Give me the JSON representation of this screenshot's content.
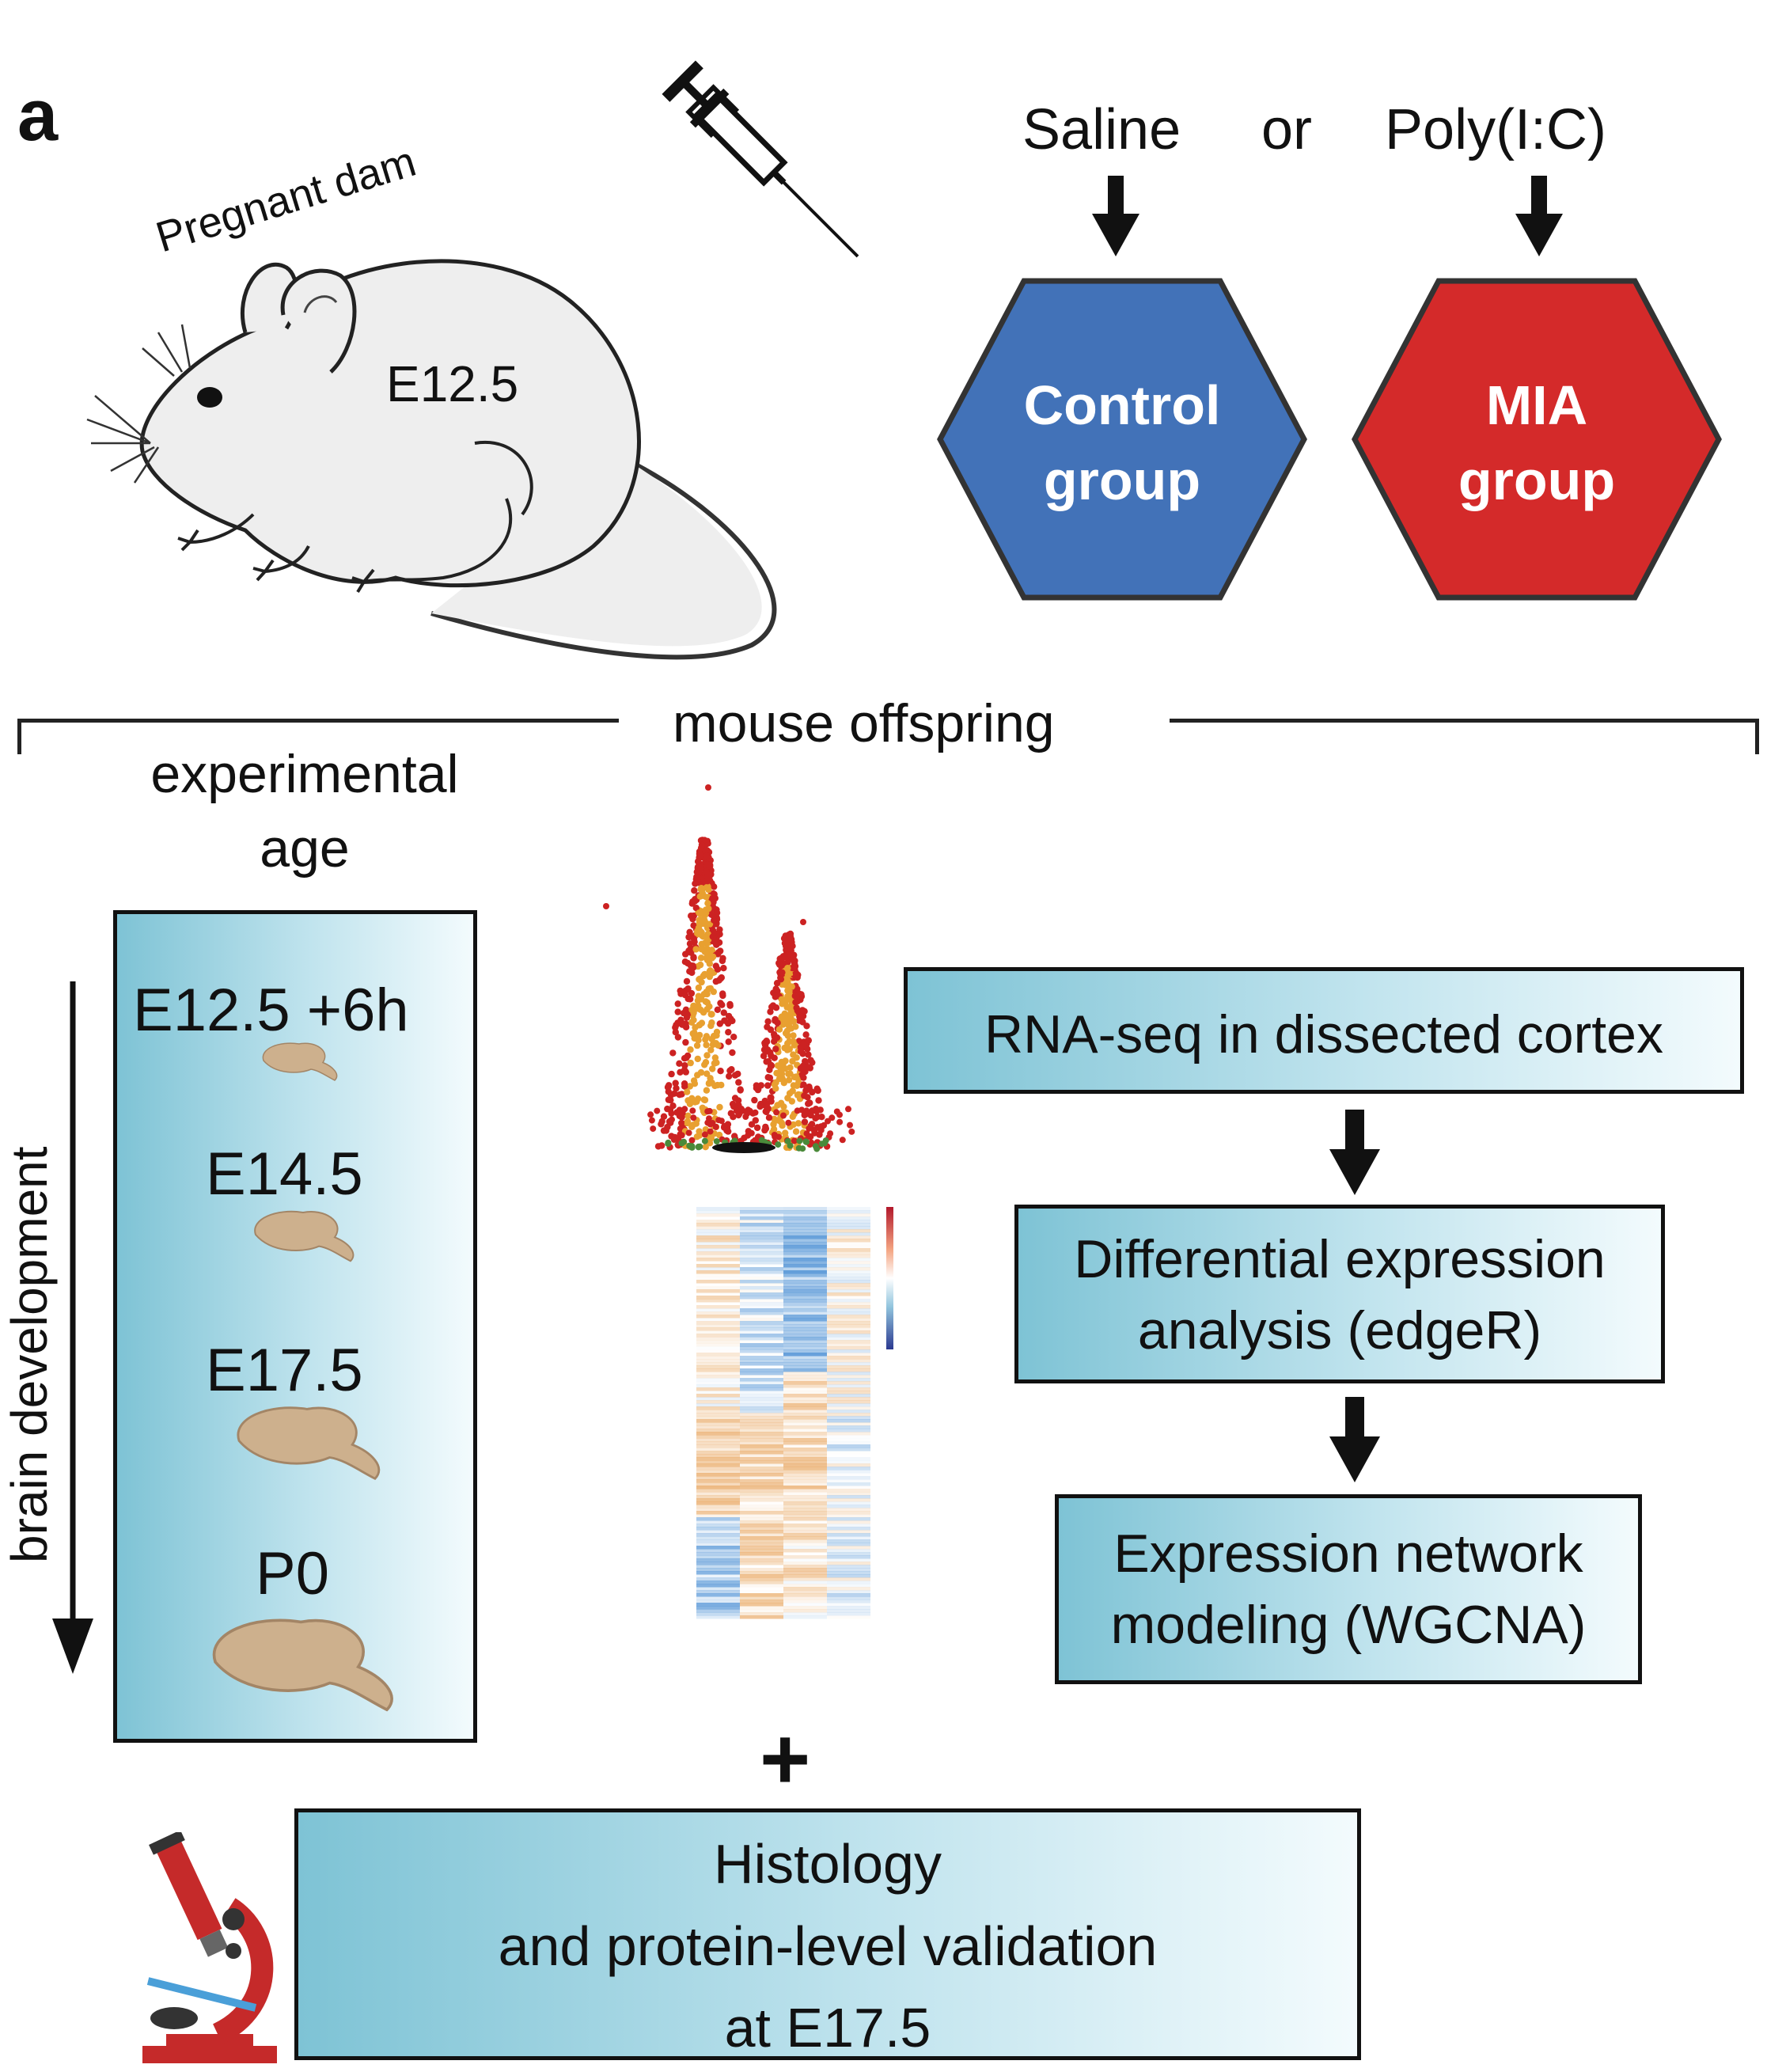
{
  "panel_letter": "a",
  "mouse": {
    "caption": "Pregnant dam",
    "age": "E12.5"
  },
  "treatment": {
    "saline": "Saline",
    "or": "or",
    "polyic": "Poly(I:C)"
  },
  "groups": {
    "control": [
      "Control",
      "group"
    ],
    "mia": [
      "MIA",
      "group"
    ]
  },
  "offspring": {
    "label": "mouse offspring",
    "experimental_age": [
      "experimental",
      "age"
    ],
    "axis_label": "brain development",
    "ages": [
      "E12.5 +6h",
      "E14.5",
      "E17.5",
      "P0"
    ]
  },
  "pipeline": {
    "rnaseq": "RNA-seq in dissected cortex",
    "de": [
      "Differential expression",
      "analysis (edgeR)"
    ],
    "wgcna": [
      "Expression network",
      "modeling (WGCNA)"
    ]
  },
  "plus": "+",
  "validation": [
    "Histology",
    "and protein-level validation",
    "at E17.5"
  ],
  "colors": {
    "control": "#4272b8",
    "mia": "#d42a2a",
    "gradient_start": "#7ec3d5",
    "gradient_end": "#f3fbfd",
    "volcano_red": "#cc2222",
    "volcano_orange": "#e8a030",
    "heatmap_blue": "#5c9ad8",
    "heatmap_orange": "#e9a965"
  },
  "icons": [
    "syringe-icon",
    "mouse-illustration",
    "brain-icon",
    "microscope-icon",
    "volcano-plot",
    "heatmap",
    "down-arrow-icon"
  ]
}
